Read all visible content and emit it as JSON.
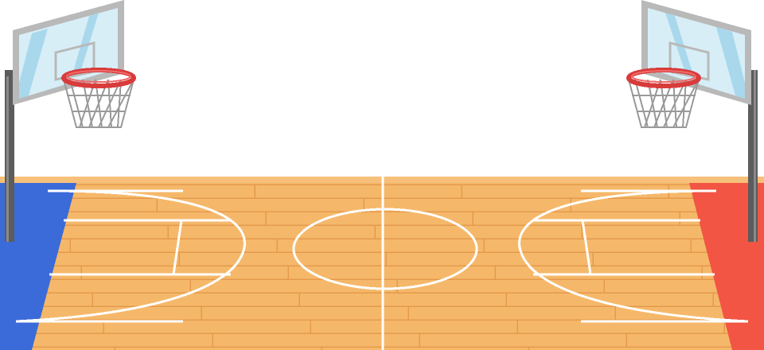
{
  "scene": {
    "name": "pixel-basketball-court",
    "colors": {
      "sky": "#ffffff",
      "floor": "#f5b86a",
      "floor_top_band": "#f7c07a",
      "plank_line": "#e59a4c",
      "court_line": "#ffffff",
      "left_side_area": "#3b6bd9",
      "right_side_area": "#f25543",
      "pole": "#5c5c5c",
      "pole_highlight": "#8a8a8a",
      "backboard_frame": "#b9b9b9",
      "backboard_glass": "#d7eef7",
      "backboard_shine": "#a9d8ec",
      "rim": "#d93b3b",
      "rim_highlight": "#f06a6a",
      "net": "#9a9a9a"
    }
  }
}
